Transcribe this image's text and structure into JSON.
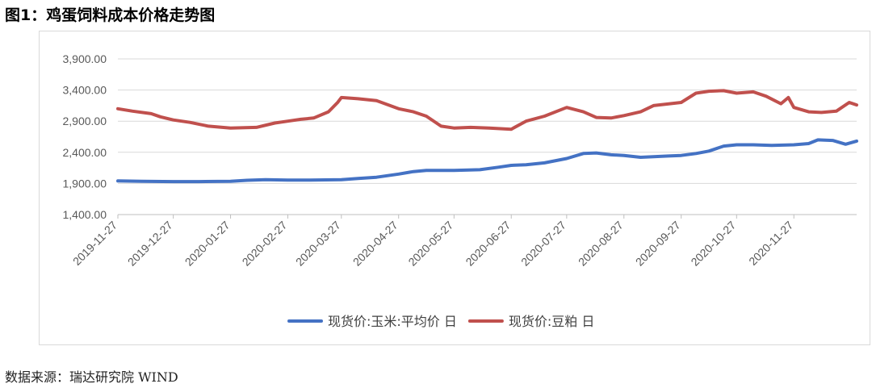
{
  "figure": {
    "title": "图1：鸡蛋饲料成本价格走势图",
    "source": "数据来源：瑞达研究院 WIND"
  },
  "chart_data": {
    "type": "line",
    "ylim": [
      1400,
      3900
    ],
    "yticks": [
      "3,900.00",
      "3,400.00",
      "2,900.00",
      "2,400.00",
      "1,900.00",
      "1,400.00"
    ],
    "ytick_values": [
      3900,
      3400,
      2900,
      2400,
      1900,
      1400
    ],
    "x_start": "2019-11-27",
    "x_end": "2020-12-31",
    "xticks": [
      "2019-11-27",
      "2019-12-27",
      "2020-01-27",
      "2020-02-27",
      "2020-03-27",
      "2020-04-27",
      "2020-05-27",
      "2020-06-27",
      "2020-07-27",
      "2020-08-27",
      "2020-09-27",
      "2020-10-27",
      "2020-11-27"
    ],
    "legend_position": "bottom",
    "series": [
      {
        "name": "现货价:玉米:平均价 日",
        "color": "#4472c4",
        "points": [
          [
            "2019-11-27",
            1940
          ],
          [
            "2019-12-10",
            1935
          ],
          [
            "2019-12-27",
            1930
          ],
          [
            "2020-01-10",
            1930
          ],
          [
            "2020-01-27",
            1935
          ],
          [
            "2020-02-05",
            1950
          ],
          [
            "2020-02-15",
            1960
          ],
          [
            "2020-02-27",
            1955
          ],
          [
            "2020-03-10",
            1955
          ],
          [
            "2020-03-27",
            1960
          ],
          [
            "2020-04-05",
            1980
          ],
          [
            "2020-04-15",
            2000
          ],
          [
            "2020-04-27",
            2050
          ],
          [
            "2020-05-05",
            2090
          ],
          [
            "2020-05-12",
            2110
          ],
          [
            "2020-05-27",
            2110
          ],
          [
            "2020-06-10",
            2120
          ],
          [
            "2020-06-20",
            2160
          ],
          [
            "2020-06-27",
            2190
          ],
          [
            "2020-07-05",
            2200
          ],
          [
            "2020-07-15",
            2230
          ],
          [
            "2020-07-27",
            2300
          ],
          [
            "2020-08-05",
            2380
          ],
          [
            "2020-08-12",
            2390
          ],
          [
            "2020-08-20",
            2360
          ],
          [
            "2020-08-27",
            2350
          ],
          [
            "2020-09-05",
            2320
          ],
          [
            "2020-09-12",
            2330
          ],
          [
            "2020-09-20",
            2340
          ],
          [
            "2020-09-27",
            2350
          ],
          [
            "2020-10-05",
            2380
          ],
          [
            "2020-10-12",
            2420
          ],
          [
            "2020-10-20",
            2500
          ],
          [
            "2020-10-27",
            2520
          ],
          [
            "2020-11-05",
            2520
          ],
          [
            "2020-11-15",
            2510
          ],
          [
            "2020-11-27",
            2520
          ],
          [
            "2020-12-05",
            2540
          ],
          [
            "2020-12-10",
            2600
          ],
          [
            "2020-12-18",
            2590
          ],
          [
            "2020-12-25",
            2530
          ],
          [
            "2020-12-31",
            2580
          ]
        ]
      },
      {
        "name": "现货价:豆粕 日",
        "color": "#c0504d",
        "points": [
          [
            "2019-11-27",
            3100
          ],
          [
            "2019-12-05",
            3060
          ],
          [
            "2019-12-15",
            3020
          ],
          [
            "2019-12-20",
            2970
          ],
          [
            "2019-12-27",
            2920
          ],
          [
            "2020-01-05",
            2880
          ],
          [
            "2020-01-15",
            2820
          ],
          [
            "2020-01-27",
            2790
          ],
          [
            "2020-02-10",
            2800
          ],
          [
            "2020-02-20",
            2870
          ],
          [
            "2020-02-27",
            2900
          ],
          [
            "2020-03-05",
            2930
          ],
          [
            "2020-03-12",
            2950
          ],
          [
            "2020-03-20",
            3050
          ],
          [
            "2020-03-25",
            3200
          ],
          [
            "2020-03-27",
            3280
          ],
          [
            "2020-04-05",
            3260
          ],
          [
            "2020-04-15",
            3230
          ],
          [
            "2020-04-27",
            3100
          ],
          [
            "2020-05-05",
            3050
          ],
          [
            "2020-05-12",
            2980
          ],
          [
            "2020-05-20",
            2820
          ],
          [
            "2020-05-27",
            2790
          ],
          [
            "2020-06-05",
            2800
          ],
          [
            "2020-06-15",
            2790
          ],
          [
            "2020-06-27",
            2770
          ],
          [
            "2020-07-05",
            2900
          ],
          [
            "2020-07-15",
            2980
          ],
          [
            "2020-07-27",
            3120
          ],
          [
            "2020-08-05",
            3050
          ],
          [
            "2020-08-12",
            2960
          ],
          [
            "2020-08-20",
            2950
          ],
          [
            "2020-08-27",
            2990
          ],
          [
            "2020-09-05",
            3050
          ],
          [
            "2020-09-12",
            3150
          ],
          [
            "2020-09-27",
            3200
          ],
          [
            "2020-10-05",
            3350
          ],
          [
            "2020-10-12",
            3380
          ],
          [
            "2020-10-20",
            3390
          ],
          [
            "2020-10-27",
            3350
          ],
          [
            "2020-11-05",
            3370
          ],
          [
            "2020-11-12",
            3300
          ],
          [
            "2020-11-20",
            3180
          ],
          [
            "2020-11-24",
            3280
          ],
          [
            "2020-11-27",
            3120
          ],
          [
            "2020-12-05",
            3050
          ],
          [
            "2020-12-12",
            3040
          ],
          [
            "2020-12-20",
            3060
          ],
          [
            "2020-12-27",
            3200
          ],
          [
            "2020-12-31",
            3160
          ]
        ]
      }
    ]
  }
}
